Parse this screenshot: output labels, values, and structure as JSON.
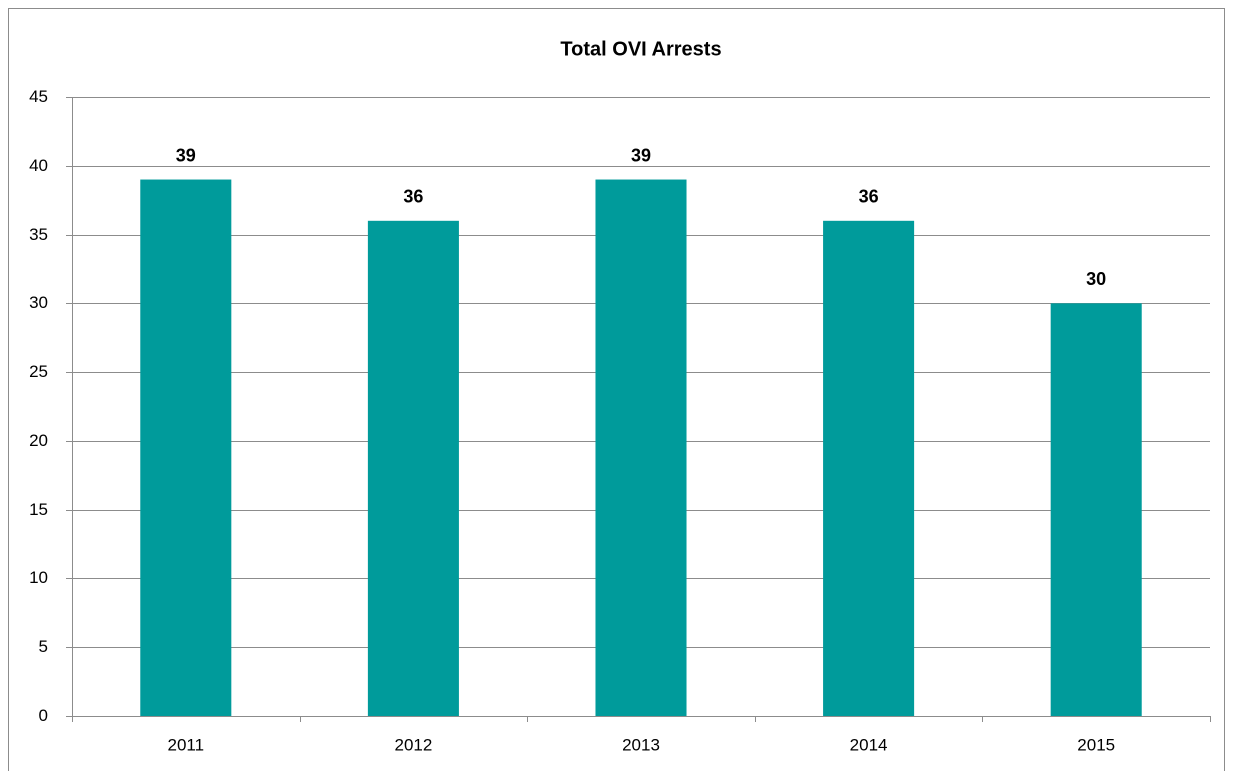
{
  "chart_data": {
    "type": "bar",
    "title": "Total OVI Arrests",
    "categories": [
      "2011",
      "2012",
      "2013",
      "2014",
      "2015"
    ],
    "values": [
      39,
      36,
      39,
      36,
      30
    ],
    "color": "#009b9b",
    "ylim": [
      0,
      45
    ],
    "yticks": [
      0,
      5,
      10,
      15,
      20,
      25,
      30,
      35,
      40,
      45
    ],
    "grid": true
  }
}
